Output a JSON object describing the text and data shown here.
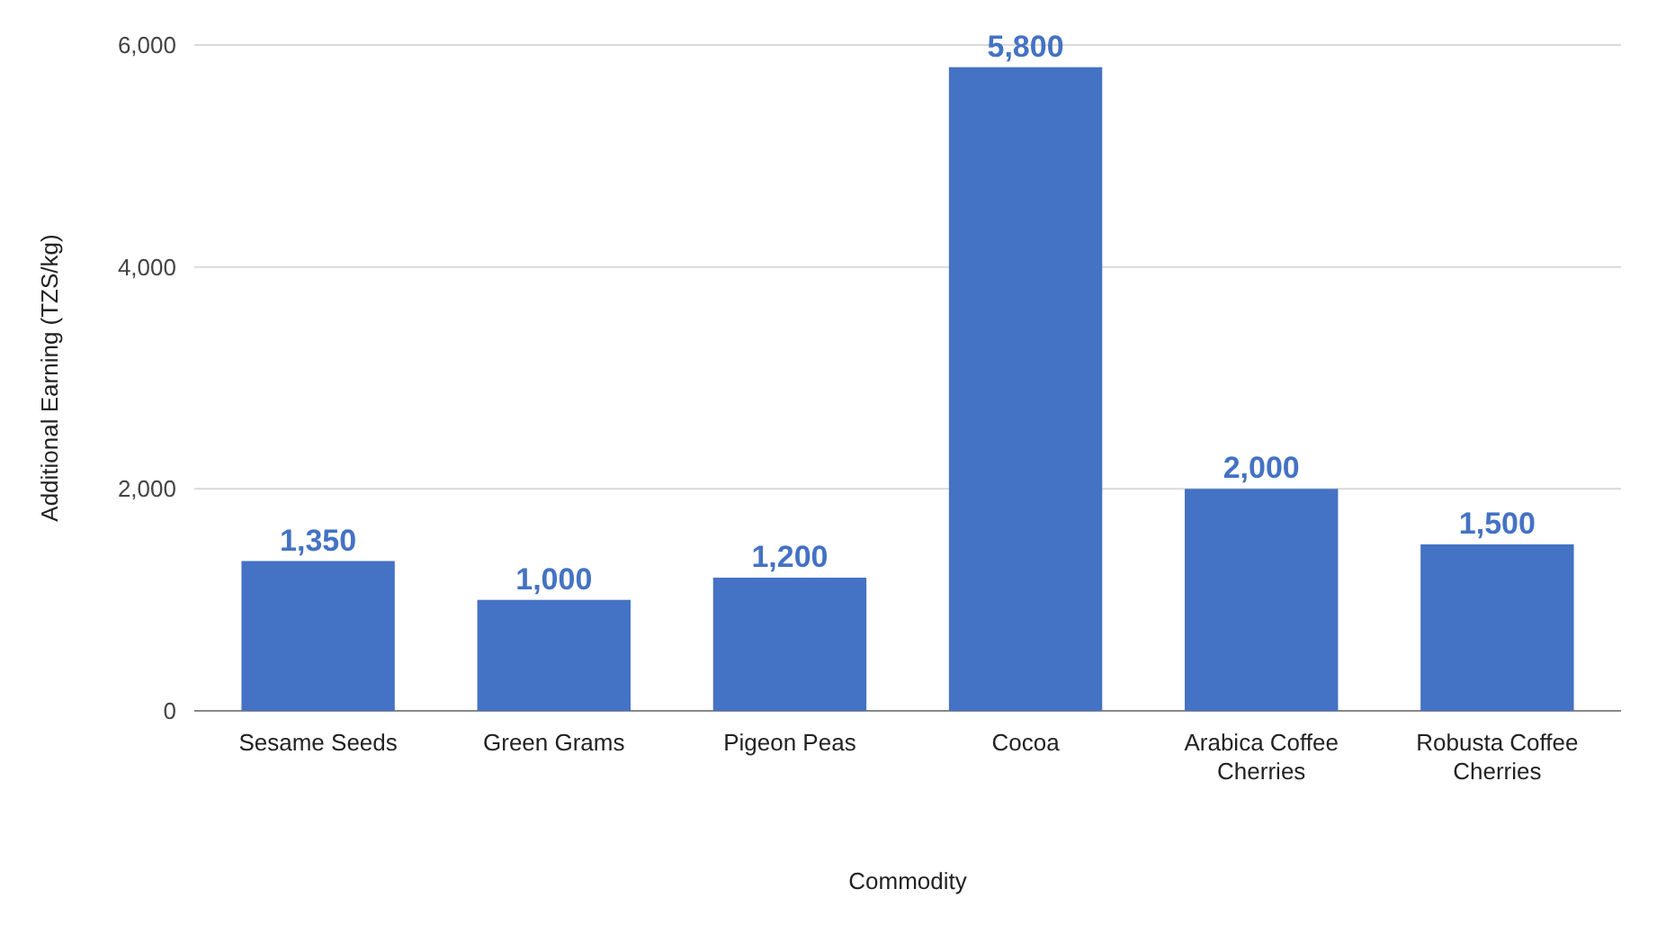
{
  "chart_data": {
    "type": "bar",
    "xlabel": "Commodity",
    "ylabel": "Additional Earning (TZS/kg)",
    "categories": [
      "Sesame Seeds",
      "Green Grams",
      "Pigeon Peas",
      "Cocoa",
      "Arabica Coffee Cherries",
      "Robusta Coffee Cherries"
    ],
    "values": [
      1350,
      1000,
      1200,
      5800,
      2000,
      1500
    ],
    "color": "#4472c4",
    "ylim": [
      0,
      6000
    ],
    "yticks": [
      {
        "value": 0,
        "label": "0"
      },
      {
        "value": 2000,
        "label": "2,000"
      },
      {
        "value": 4000,
        "label": "4,000"
      },
      {
        "value": 6000,
        "label": "6,000"
      }
    ],
    "grid": "y",
    "value_labels": [
      "1,350",
      "1,000",
      "1,200",
      "5,800",
      "2,000",
      "1,500"
    ]
  }
}
